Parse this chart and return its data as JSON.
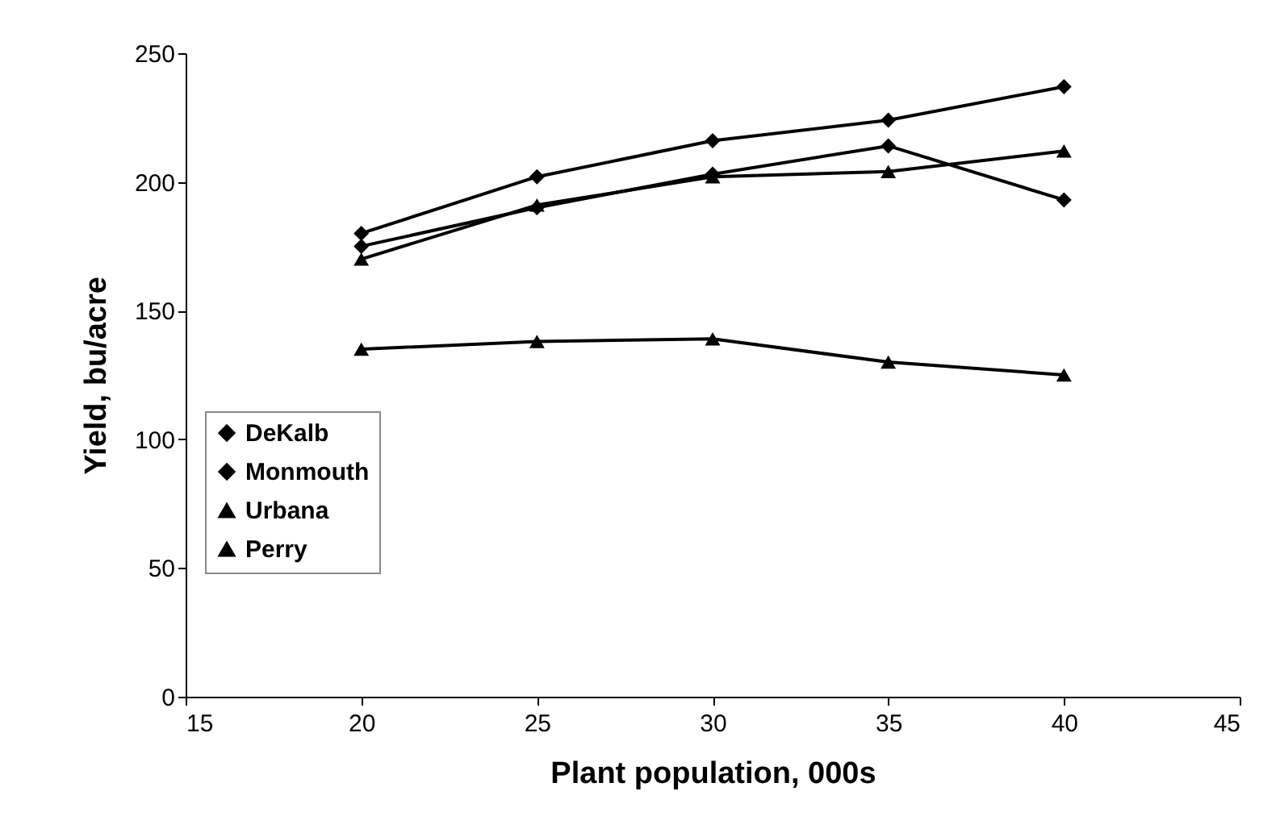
{
  "chart_data": {
    "type": "line",
    "xlabel": "Plant population, 000s",
    "ylabel": "Yield, bu/acre",
    "x": [
      20,
      25,
      30,
      35,
      40
    ],
    "series": [
      {
        "name": "DeKalb",
        "color": "#000000",
        "marker": "diamond",
        "values": [
          180,
          202,
          216,
          224,
          237
        ]
      },
      {
        "name": "Monmouth",
        "color": "#000000",
        "marker": "diamond",
        "values": [
          175,
          190,
          203,
          214,
          193
        ]
      },
      {
        "name": "Urbana",
        "color": "#000000",
        "marker": "triangle",
        "values": [
          170,
          191,
          202,
          204,
          212
        ]
      },
      {
        "name": "Perry",
        "color": "#000000",
        "marker": "triangle",
        "values": [
          135,
          138,
          139,
          130,
          125
        ]
      }
    ],
    "xlim": [
      15,
      45
    ],
    "xticks": [
      15,
      20,
      25,
      30,
      35,
      40,
      45
    ],
    "ylim": [
      0,
      250
    ],
    "yticks": [
      0,
      50,
      100,
      150,
      200,
      250
    ],
    "grid": false,
    "legend": "left",
    "line_style": "solid"
  }
}
